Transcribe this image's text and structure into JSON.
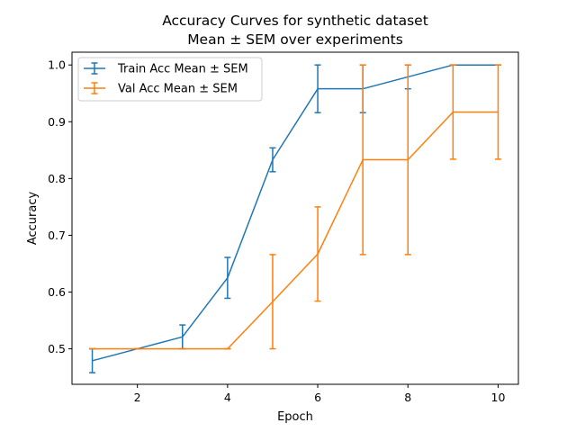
{
  "chart_data": {
    "type": "line",
    "title_line1": "Accuracy Curves for synthetic dataset",
    "title_line2": "Mean ± SEM over experiments",
    "xlabel": "Epoch",
    "ylabel": "Accuracy",
    "xlim": [
      0.55,
      10.45
    ],
    "ylim": [
      0.4375,
      1.0225
    ],
    "x_ticks": [
      2,
      4,
      6,
      8,
      10
    ],
    "y_ticks": [
      0.5,
      0.6,
      0.7,
      0.8,
      0.9,
      1.0
    ],
    "y_tick_labels": [
      "0.5",
      "0.6",
      "0.7",
      "0.8",
      "0.9",
      "1.0"
    ],
    "grid": false,
    "legend_position": "upper-left",
    "x": [
      1,
      2,
      3,
      4,
      5,
      6,
      7,
      8,
      9,
      10
    ],
    "series": [
      {
        "name": "Train Acc Mean ± SEM",
        "color": "#1f77b4",
        "values": [
          0.479,
          0.5,
          0.521,
          0.625,
          0.833,
          0.958,
          0.958,
          0.979,
          1.0,
          1.0
        ],
        "sem": [
          0.021,
          0.0,
          0.021,
          0.036,
          0.021,
          0.042,
          0.042,
          0.021,
          0.0,
          0.0
        ]
      },
      {
        "name": "Val Acc Mean ± SEM",
        "color": "#ff7f0e",
        "values": [
          0.5,
          0.5,
          0.5,
          0.5,
          0.583,
          0.667,
          0.833,
          0.833,
          0.917,
          0.917
        ],
        "sem": [
          0.0,
          0.0,
          0.0,
          0.0,
          0.083,
          0.083,
          0.167,
          0.167,
          0.083,
          0.083
        ]
      }
    ]
  }
}
